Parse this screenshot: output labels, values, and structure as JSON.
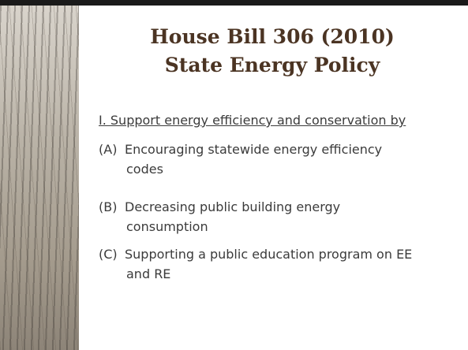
{
  "title": [
    "House Bill 306 (2010)",
    "State Energy Policy"
  ],
  "heading": "I. Support energy efficiency and conservation by",
  "items": [
    {
      "label": "(A)",
      "lines": [
        "Encouraging statewide energy efficiency",
        "codes"
      ]
    },
    {
      "label": "(B)",
      "lines": [
        "Decreasing public building energy",
        "consumption"
      ]
    },
    {
      "label": "(C)",
      "lines": [
        "Supporting a public education program on EE",
        "and RE"
      ]
    }
  ]
}
